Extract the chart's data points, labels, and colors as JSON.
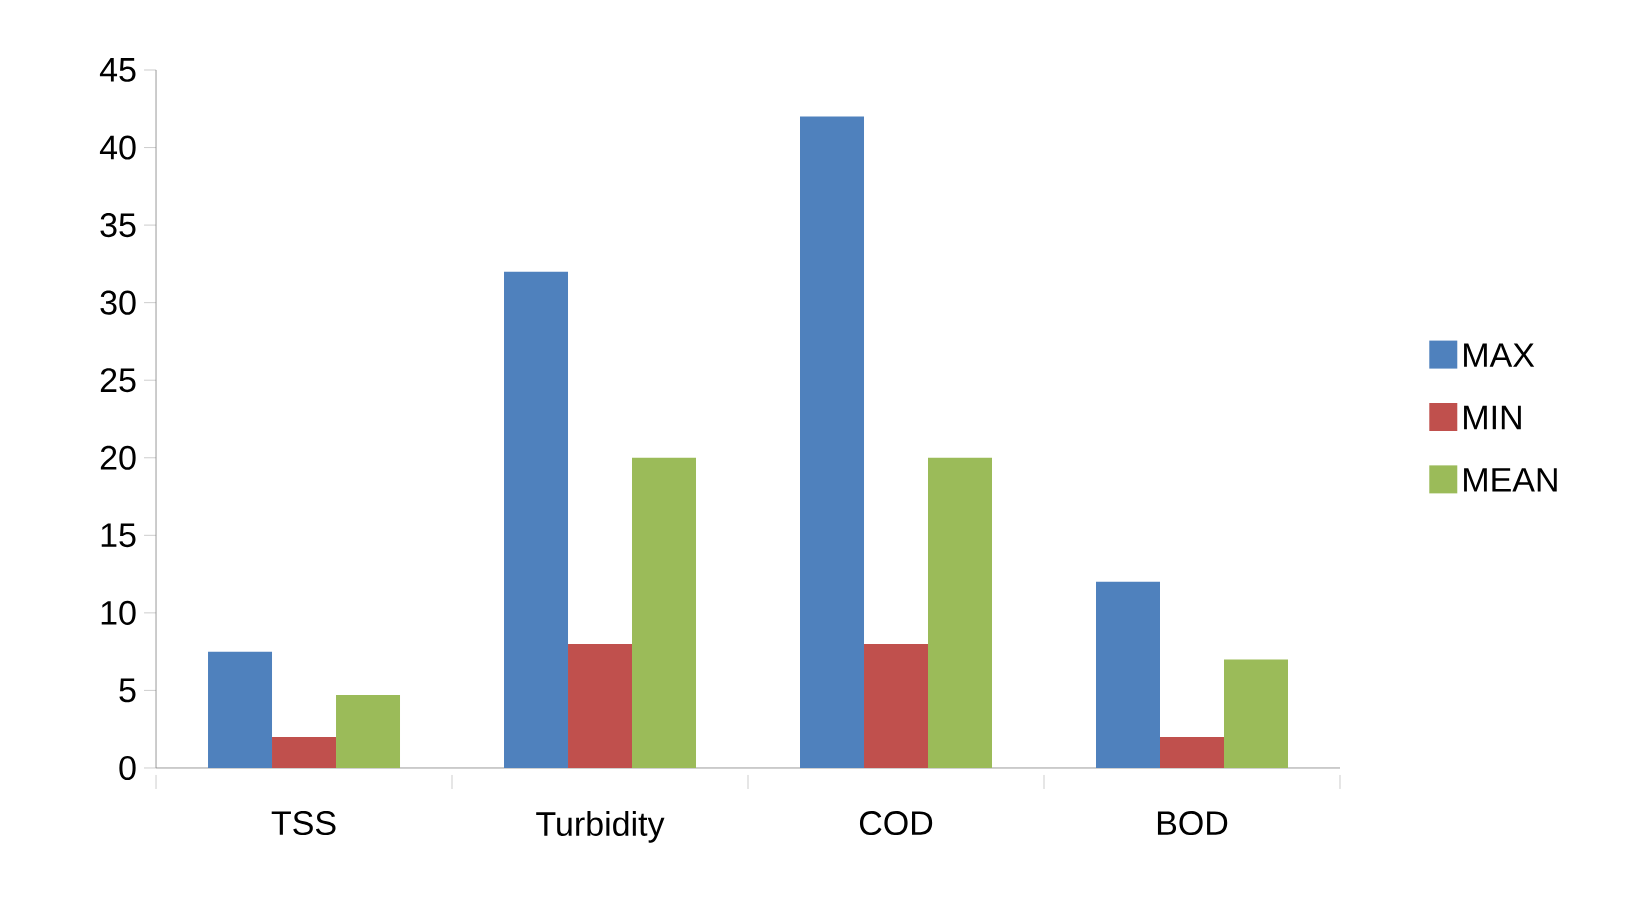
{
  "chart_data": {
    "type": "bar",
    "categories": [
      "TSS",
      "Turbidity",
      "COD",
      "BOD"
    ],
    "series": [
      {
        "name": "MAX",
        "color": "#4f81bd",
        "values": [
          7.5,
          32,
          42,
          12
        ]
      },
      {
        "name": "MIN",
        "color": "#c0504d",
        "values": [
          2,
          8,
          8,
          2
        ]
      },
      {
        "name": "MEAN",
        "color": "#9bbb59",
        "values": [
          4.7,
          20,
          20,
          7
        ]
      }
    ],
    "ylim": [
      0,
      45
    ],
    "yticks": [
      0,
      5,
      10,
      15,
      20,
      25,
      30,
      35,
      40,
      45
    ],
    "grid": false,
    "legend": "right"
  }
}
